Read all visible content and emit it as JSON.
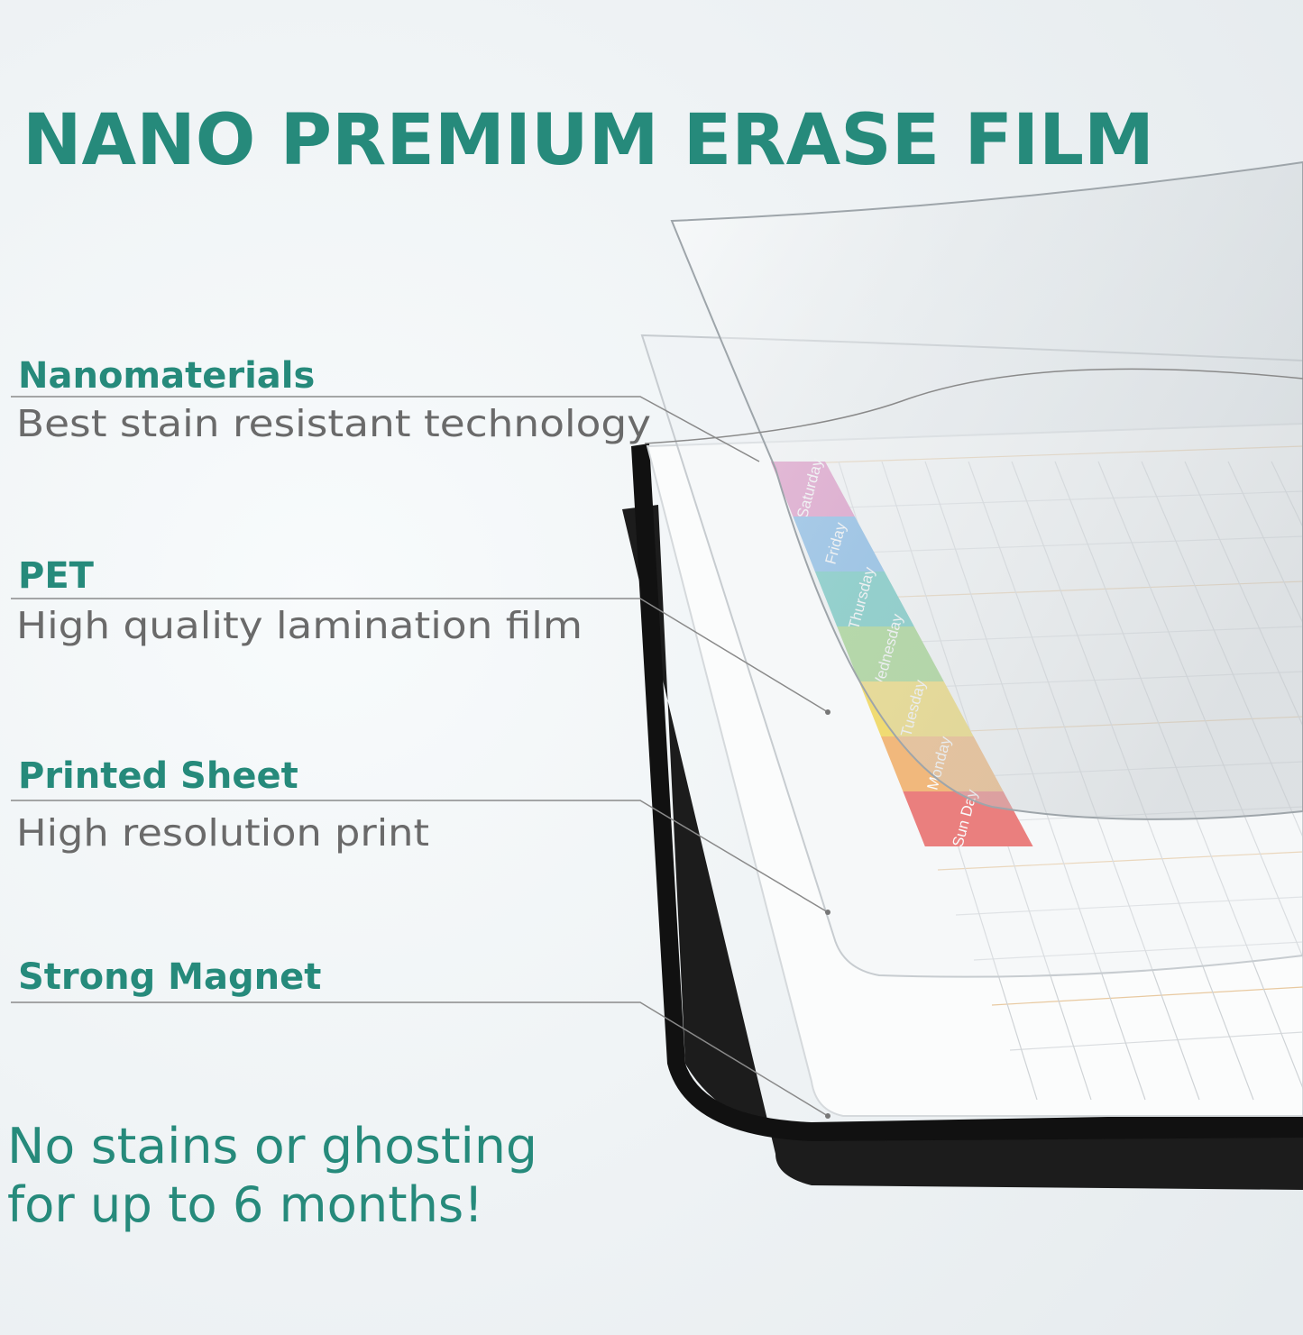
{
  "header": {
    "title": "NANO PREMIUM ERASE FILM"
  },
  "layers": [
    {
      "name": "Nanomaterials",
      "description": "Best stain resistant technology"
    },
    {
      "name": "PET",
      "description": "High quality lamination film"
    },
    {
      "name": "Printed Sheet",
      "description": "High resolution print"
    },
    {
      "name": "Strong Magnet",
      "description": ""
    }
  ],
  "tagline": [
    "No stains or ghosting",
    "for up to 6 months!"
  ],
  "planner": {
    "days": [
      "Saturday",
      "Friday",
      "Thursday",
      "Wednesday",
      "Tuesday",
      "Monday",
      "Sun Day"
    ]
  }
}
